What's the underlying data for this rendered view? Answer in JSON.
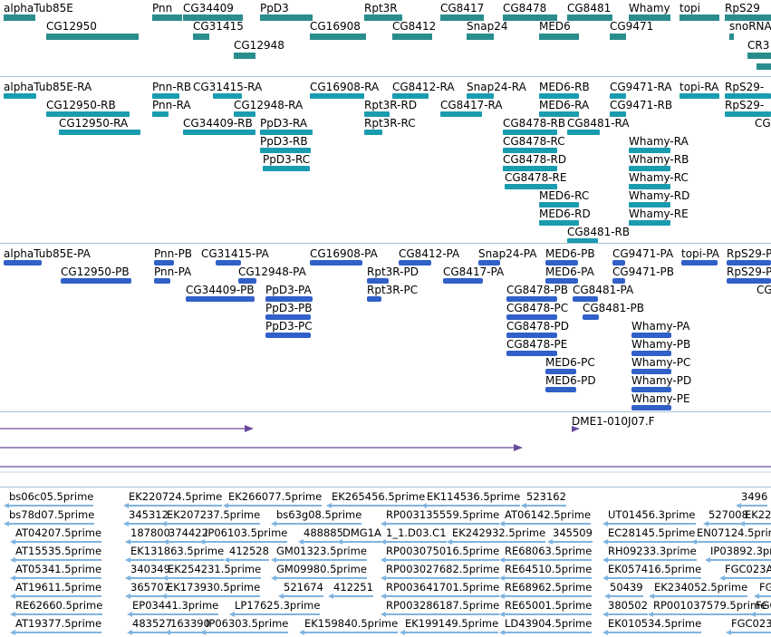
{
  "colors": {
    "gene": "#2a8d8d",
    "transcript": "#1a9cb0",
    "protein": "#3060c8",
    "dme": "#6a4c9c",
    "est": "#7fb4e0",
    "separator": "#a7c2d6"
  },
  "genes": [
    "alphaTub85E",
    "Pnn",
    "CG34409",
    "PpD3",
    "Rpt3R",
    "CG8417",
    "CG8478",
    "CG8481",
    "Whamy",
    "topi",
    "RpS29",
    "CG12950",
    "CG31415",
    "CG16908",
    "CG8412",
    "Snap24",
    "MED6",
    "CG9471",
    "snoRNA",
    "CG12948",
    "CR3"
  ],
  "transcripts": [
    "alphaTub85E-RA",
    "Pnn-RB",
    "CG31415-RA",
    "CG16908-RA",
    "CG8412-RA",
    "Snap24-RA",
    "MED6-RB",
    "CG9471-RA",
    "topi-RA",
    "RpS29-",
    "CG12950-RB",
    "Pnn-RA",
    "CG12948-RA",
    "Rpt3R-RD",
    "CG8417-RA",
    "MED6-RA",
    "CG9471-RB",
    "RpS29-",
    "CG12950-RA",
    "CG34409-RB",
    "PpD3-RA",
    "Rpt3R-RC",
    "CG8478-RB",
    "CG8481-RA",
    "CG",
    "PpD3-RB",
    "CG8478-RC",
    "Whamy-RA",
    "PpD3-RC",
    "CG8478-RD",
    "Whamy-RB",
    "CG8478-RE",
    "Whamy-RC",
    "MED6-RC",
    "Whamy-RD",
    "MED6-RD",
    "Whamy-RE",
    "CG8481-RB"
  ],
  "proteins": [
    "alphaTub85E-PA",
    "Pnn-PB",
    "CG31415-PA",
    "CG16908-PA",
    "CG8412-PA",
    "Snap24-PA",
    "MED6-PB",
    "CG9471-PA",
    "topi-PA",
    "RpS29-P",
    "CG12950-PB",
    "Pnn-PA",
    "CG12948-PA",
    "Rpt3R-PD",
    "CG8417-PA",
    "MED6-PA",
    "CG9471-PB",
    "RpS29-P",
    "CG34409-PB",
    "PpD3-PA",
    "Rpt3R-PC",
    "CG8478-PB",
    "CG8481-PA",
    "CG",
    "PpD3-PB",
    "CG8478-PC",
    "CG8481-PB",
    "PpD3-PC",
    "CG8478-PD",
    "Whamy-PA",
    "CG8478-PE",
    "Whamy-PB",
    "MED6-PC",
    "Whamy-PC",
    "MED6-PD",
    "Whamy-PD",
    "Whamy-PE"
  ],
  "dme_label": "DME1-010J07.F",
  "ests": [
    [
      "bs06c05.5prime",
      "EK220724.5prime",
      "EK266077.5prime",
      "EK265456.5prime",
      "EK114536.5prime",
      "523162",
      "3496"
    ],
    [
      "bs78d07.5prime",
      "345312",
      "EK207237.5prime",
      "bs63g08.5prime",
      "RP003135559.5prime",
      "AT06142.5prime",
      "UT01456.3prime",
      "527008",
      "EK22"
    ],
    [
      "AT04207.5prime",
      "187800",
      "374422",
      "IP06103.5prime",
      "488885",
      "DMG1A",
      "1_1.D03.C1",
      "EK242932.5prime",
      "345509",
      "EC28145.5prime",
      "EN07124.5prime"
    ],
    [
      "AT15535.5prime",
      "EK131863.5prime",
      "412528",
      "GM01323.5prime",
      "RP003075016.5prime",
      "RE68063.5prime",
      "RH09233.3prime",
      "IP03892.3prime"
    ],
    [
      "AT05341.5prime",
      "340349",
      "EK254231.5prime",
      "GM09980.5prime",
      "RP003027682.5prime",
      "RE64510.5prime",
      "EK057416.5prime",
      "FGC023A"
    ],
    [
      "AT19611.5prime",
      "365707",
      "EK173930.5prime",
      "521674",
      "412251",
      "RP003641701.5prime",
      "RE68962.5prime",
      "50439",
      "EK234052.5prime",
      "FG"
    ],
    [
      "RE62660.5prime",
      "EP03441.3prime",
      "LP17625.3prime",
      "RP003286187.5prime",
      "RE65001.5prime",
      "380502",
      "RP001037579.5prime",
      "FGC"
    ],
    [
      "AT19377.5prime",
      "483527",
      "163390",
      "IP06303.5prime",
      "EK159840.5prime",
      "EK199149.5prime",
      "LD43904.5prime",
      "EK010534.5prime",
      "FGC023A"
    ]
  ]
}
